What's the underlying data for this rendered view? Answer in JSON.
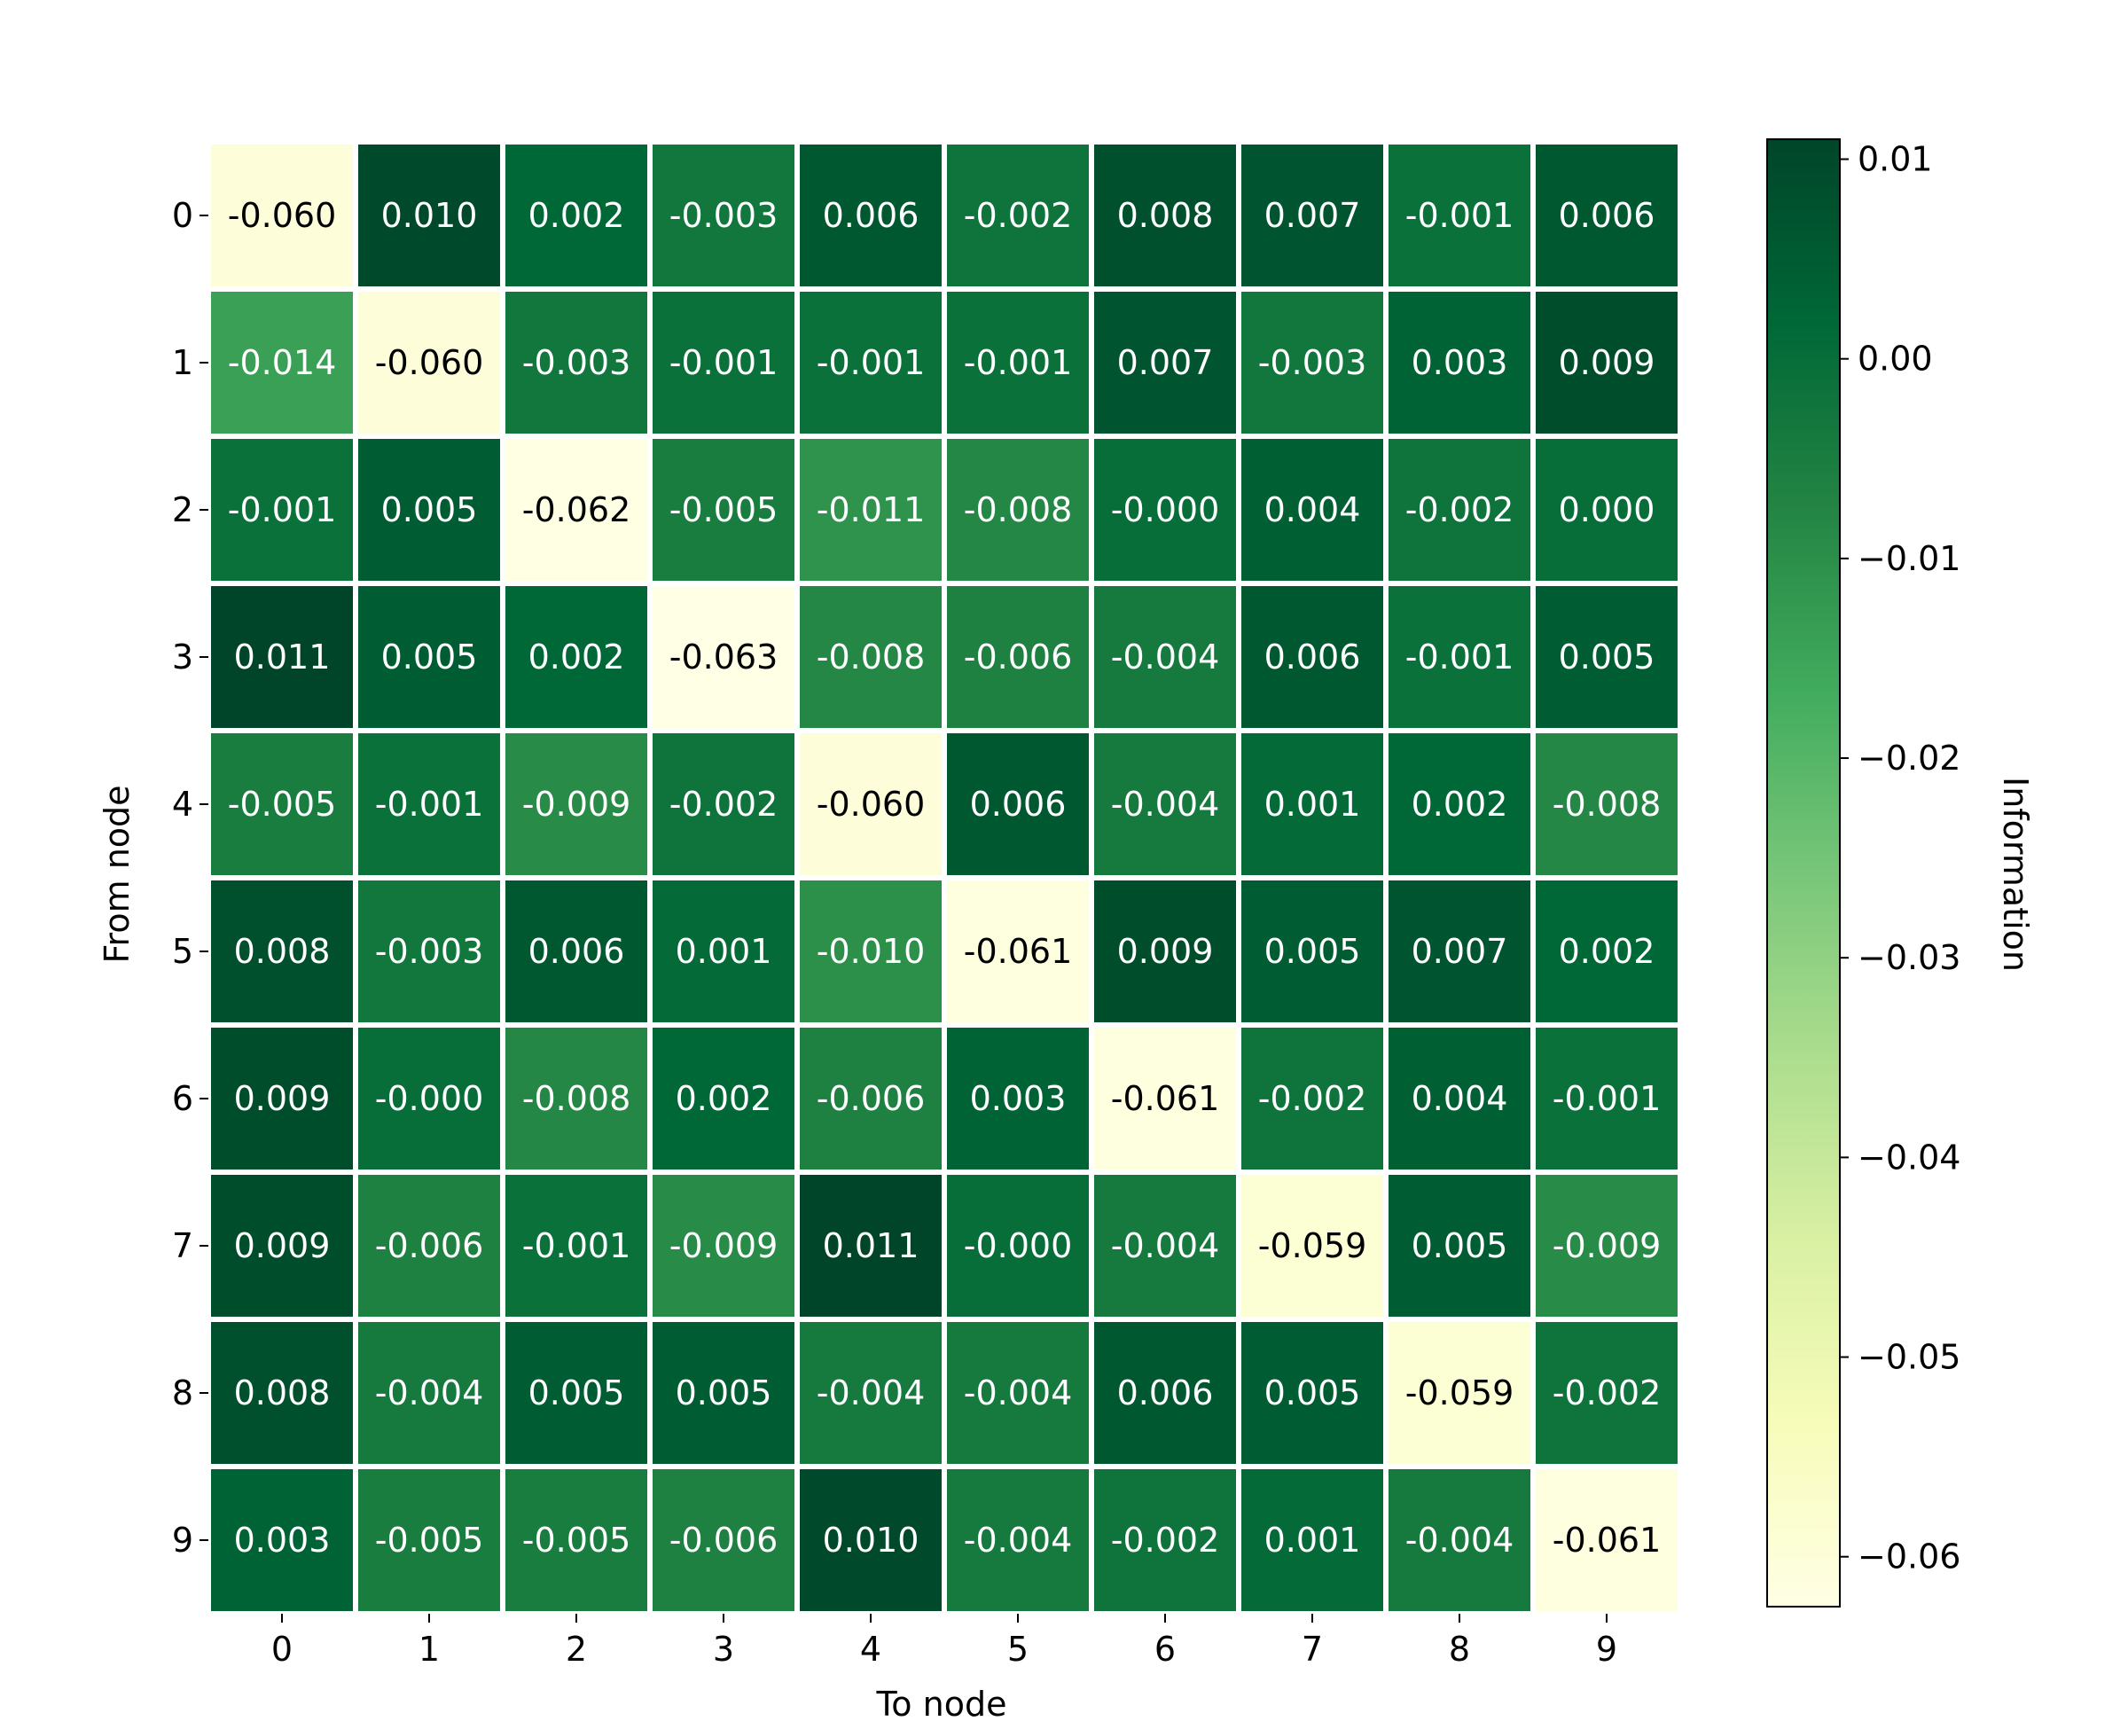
{
  "chart_data": {
    "type": "heatmap",
    "xlabel": "To node",
    "ylabel": "From node",
    "x_categories": [
      "0",
      "1",
      "2",
      "3",
      "4",
      "5",
      "6",
      "7",
      "8",
      "9"
    ],
    "y_categories": [
      "0",
      "1",
      "2",
      "3",
      "4",
      "5",
      "6",
      "7",
      "8",
      "9"
    ],
    "values": [
      [
        -0.06,
        0.01,
        0.002,
        -0.003,
        0.006,
        -0.002,
        0.008,
        0.007,
        -0.001,
        0.006
      ],
      [
        -0.014,
        -0.06,
        -0.003,
        -0.001,
        -0.001,
        -0.001,
        0.007,
        -0.003,
        0.003,
        0.009
      ],
      [
        -0.001,
        0.005,
        -0.062,
        -0.005,
        -0.011,
        -0.008,
        -0.0,
        0.004,
        -0.002,
        0.0
      ],
      [
        0.011,
        0.005,
        0.002,
        -0.063,
        -0.008,
        -0.006,
        -0.004,
        0.006,
        -0.001,
        0.005
      ],
      [
        -0.005,
        -0.001,
        -0.009,
        -0.002,
        -0.06,
        0.006,
        -0.004,
        0.001,
        0.002,
        -0.008
      ],
      [
        0.008,
        -0.003,
        0.006,
        0.001,
        -0.01,
        -0.061,
        0.009,
        0.005,
        0.007,
        0.002
      ],
      [
        0.009,
        -0.0,
        -0.008,
        0.002,
        -0.006,
        0.003,
        -0.061,
        -0.002,
        0.004,
        -0.001
      ],
      [
        0.009,
        -0.006,
        -0.001,
        -0.009,
        0.011,
        -0.0,
        -0.004,
        -0.059,
        0.005,
        -0.009
      ],
      [
        0.008,
        -0.004,
        0.005,
        0.005,
        -0.004,
        -0.004,
        0.006,
        0.005,
        -0.059,
        -0.002
      ],
      [
        0.003,
        -0.005,
        -0.005,
        -0.006,
        0.01,
        -0.004,
        -0.002,
        0.001,
        -0.004,
        -0.061
      ]
    ],
    "cell_labels": [
      [
        "-0.060",
        "0.010",
        "0.002",
        "-0.003",
        "0.006",
        "-0.002",
        "0.008",
        "0.007",
        "-0.001",
        "0.006"
      ],
      [
        "-0.014",
        "-0.060",
        "-0.003",
        "-0.001",
        "-0.001",
        "-0.001",
        "0.007",
        "-0.003",
        "0.003",
        "0.009"
      ],
      [
        "-0.001",
        "0.005",
        "-0.062",
        "-0.005",
        "-0.011",
        "-0.008",
        "-0.000",
        "0.004",
        "-0.002",
        "0.000"
      ],
      [
        "0.011",
        "0.005",
        "0.002",
        "-0.063",
        "-0.008",
        "-0.006",
        "-0.004",
        "0.006",
        "-0.001",
        "0.005"
      ],
      [
        "-0.005",
        "-0.001",
        "-0.009",
        "-0.002",
        "-0.060",
        "0.006",
        "-0.004",
        "0.001",
        "0.002",
        "-0.008"
      ],
      [
        "0.008",
        "-0.003",
        "0.006",
        "0.001",
        "-0.010",
        "-0.061",
        "0.009",
        "0.005",
        "0.007",
        "0.002"
      ],
      [
        "0.009",
        "-0.000",
        "-0.008",
        "0.002",
        "-0.006",
        "0.003",
        "-0.061",
        "-0.002",
        "0.004",
        "-0.001"
      ],
      [
        "0.009",
        "-0.006",
        "-0.001",
        "-0.009",
        "0.011",
        "-0.000",
        "-0.004",
        "-0.059",
        "0.005",
        "-0.009"
      ],
      [
        "0.008",
        "-0.004",
        "0.005",
        "0.005",
        "-0.004",
        "-0.004",
        "0.006",
        "0.005",
        "-0.059",
        "-0.002"
      ],
      [
        "0.003",
        "-0.005",
        "-0.005",
        "-0.006",
        "0.010",
        "-0.004",
        "-0.002",
        "0.001",
        "-0.004",
        "-0.061"
      ]
    ],
    "colormap": "YlGn",
    "colorbar": {
      "label": "Information",
      "range": [
        -0.0625,
        0.011
      ],
      "ticks": [
        0.01,
        0.0,
        -0.01,
        -0.02,
        -0.03,
        -0.04,
        -0.05,
        -0.06
      ],
      "tick_labels": [
        "0.01",
        "0.00",
        "−0.01",
        "−0.02",
        "−0.03",
        "−0.04",
        "−0.05",
        "−0.06"
      ]
    },
    "colors": {
      "light_text": "#ffffff",
      "dark_text": "#000000",
      "cell_border": "#ffffff",
      "scale_stops": [
        "#ffffe5",
        "#f7fcb9",
        "#d9f0a3",
        "#addd8e",
        "#78c679",
        "#41ab5d",
        "#238443",
        "#006837",
        "#004529"
      ]
    }
  }
}
